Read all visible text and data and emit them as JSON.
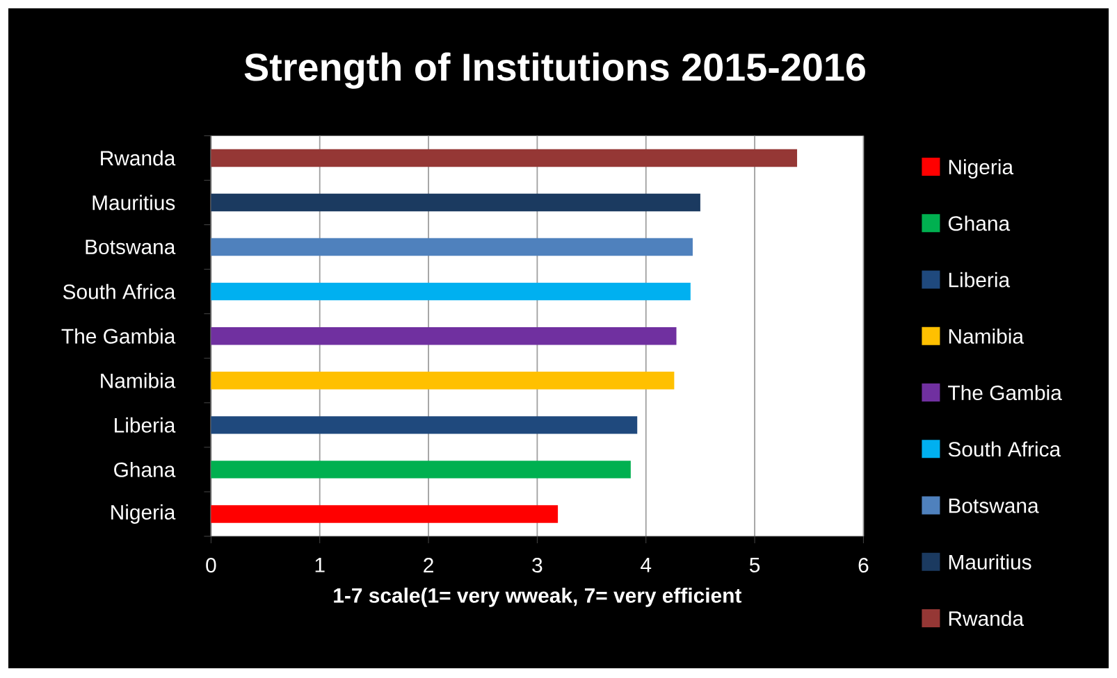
{
  "chart_data": {
    "type": "bar",
    "orientation": "horizontal",
    "title": "Strength of Institutions 2015-2016",
    "xlabel": "1-7 scale(1= very wweak, 7= very efficient",
    "categories": [
      "Rwanda",
      "Mauritius",
      "Botswana",
      "South Africa",
      "The Gambia",
      "Namibia",
      "Liberia",
      "Ghana",
      "Nigeria"
    ],
    "series": [
      {
        "name": "Nigeria",
        "color": "#ff0000",
        "values": [
          null,
          null,
          null,
          null,
          null,
          null,
          null,
          null,
          3.19
        ]
      },
      {
        "name": "Ghana",
        "color": "#00b050",
        "values": [
          null,
          null,
          null,
          null,
          null,
          null,
          null,
          3.86,
          null
        ]
      },
      {
        "name": "Liberia",
        "color": "#1f497d",
        "values": [
          null,
          null,
          null,
          null,
          null,
          null,
          3.92,
          null,
          null
        ]
      },
      {
        "name": "Namibia",
        "color": "#ffc000",
        "values": [
          null,
          null,
          null,
          null,
          null,
          4.26,
          null,
          null,
          null
        ]
      },
      {
        "name": "The Gambia",
        "color": "#7030a0",
        "values": [
          null,
          null,
          null,
          null,
          4.28,
          null,
          null,
          null,
          null
        ]
      },
      {
        "name": "South Africa",
        "color": "#00b0f0",
        "values": [
          null,
          null,
          null,
          4.41,
          null,
          null,
          null,
          null,
          null
        ]
      },
      {
        "name": "Botswana",
        "color": "#4f81bd",
        "values": [
          null,
          null,
          4.43,
          null,
          null,
          null,
          null,
          null,
          null
        ]
      },
      {
        "name": "Mauritius",
        "color": "#1b3a60",
        "values": [
          null,
          4.5,
          null,
          null,
          null,
          null,
          null,
          null,
          null
        ]
      },
      {
        "name": "Rwanda",
        "color": "#953735",
        "values": [
          5.39,
          null,
          null,
          null,
          null,
          null,
          null,
          null,
          null
        ]
      }
    ],
    "xlim": [
      0,
      6
    ],
    "xticks": [
      0,
      1,
      2,
      3,
      4,
      5,
      6
    ],
    "grid": "x",
    "legend": "right"
  }
}
